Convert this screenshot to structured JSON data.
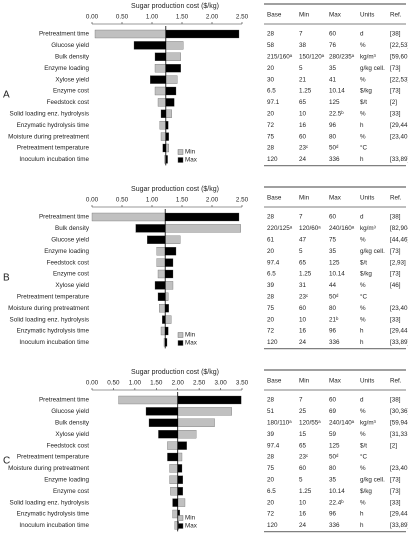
{
  "chart_data": [
    {
      "type": "tornado",
      "label": "A",
      "xlabel": "Sugar production cost ($/kg)",
      "base": 1.23,
      "xlim": [
        0,
        2.5
      ],
      "xticks": [
        {
          "value": 0,
          "label": "0.00"
        },
        {
          "value": 0.5,
          "label": "0.50"
        },
        {
          "value": 1,
          "label": "1.00"
        },
        {
          "value": 1.5,
          "label": "1.50"
        },
        {
          "value": 2,
          "label": "2.00"
        },
        {
          "value": 2.5,
          "label": "2.50"
        }
      ],
      "categories": [
        "Pretreatment time",
        "Glucose yield",
        "Bulk density",
        "Enzyme loading",
        "Xylose yield",
        "Enzyme cost",
        "Feedstock cost",
        "Solid loading enz. hydrolysis",
        "Enzymatic hydrolysis time",
        "Moisture during pretreatment",
        "Pretreatment temperature",
        "Inoculum incubation time"
      ],
      "series": [
        {
          "name": "Min",
          "color": "#c0c0c0",
          "values": [
            0.05,
            1.52,
            1.48,
            1.05,
            1.42,
            1.05,
            1.1,
            1.33,
            1.13,
            1.15,
            1.28,
            1.21
          ]
        },
        {
          "name": "Max",
          "color": "#000000",
          "values": [
            2.45,
            0.7,
            1.05,
            1.48,
            0.97,
            1.4,
            1.37,
            1.15,
            1.27,
            1.28,
            1.18,
            1.26
          ]
        }
      ]
    },
    {
      "type": "tornado",
      "label": "B",
      "xlabel": "Sugar production cost ($/kg)",
      "base": 1.22,
      "xlim": [
        0,
        2.5
      ],
      "xticks": [
        {
          "value": 0,
          "label": "0.00"
        },
        {
          "value": 0.5,
          "label": "0.50"
        },
        {
          "value": 1,
          "label": "1.00"
        },
        {
          "value": 1.5,
          "label": "1.50"
        },
        {
          "value": 2,
          "label": "2.00"
        },
        {
          "value": 2.5,
          "label": "2.50"
        }
      ],
      "categories": [
        "Pretreatment time",
        "Bulk density",
        "Glucose yield",
        "Enzyme loading",
        "Feedstock cost",
        "Enzyme cost",
        "Xylose yield",
        "Pretreatment temperature",
        "Moisture during pretreatment",
        "Solid loading enz. hydrolysis",
        "Enzymatic hydrolysis time",
        "Inoculum incubation time"
      ],
      "series": [
        {
          "name": "Min",
          "color": "#c0c0c0",
          "values": [
            0.0,
            2.48,
            1.47,
            1.08,
            1.08,
            1.1,
            1.35,
            1.27,
            1.12,
            1.32,
            1.15,
            1.2
          ]
        },
        {
          "name": "Max",
          "color": "#000000",
          "values": [
            2.45,
            0.73,
            0.92,
            1.4,
            1.35,
            1.35,
            1.05,
            1.1,
            1.28,
            1.17,
            1.27,
            1.25
          ]
        }
      ]
    },
    {
      "type": "tornado",
      "label": "C",
      "xlabel": "Sugar production cost ($/kg)",
      "base": 2.0,
      "xlim": [
        0,
        3.5
      ],
      "xticks": [
        {
          "value": 0,
          "label": "0.00"
        },
        {
          "value": 0.5,
          "label": "0.50"
        },
        {
          "value": 1,
          "label": "1.00"
        },
        {
          "value": 1.5,
          "label": "1.50"
        },
        {
          "value": 2,
          "label": "2.00"
        },
        {
          "value": 2.5,
          "label": "2.50"
        },
        {
          "value": 3,
          "label": "3.00"
        },
        {
          "value": 3.5,
          "label": "3.50"
        }
      ],
      "categories": [
        "Pretreatment time",
        "Glucose yield",
        "Bulk density",
        "Xylose yield",
        "Feedstock cost",
        "Pretreatment temperature",
        "Moisture during pretreatment",
        "Enzyme loading",
        "Enzyme cost",
        "Solid loading enz. hydrolysis",
        "Enzymatic hydrolysis time",
        "Inoculum incubation time"
      ],
      "series": [
        {
          "name": "Min",
          "color": "#c0c0c0",
          "values": [
            0.62,
            3.26,
            2.86,
            2.43,
            1.76,
            2.1,
            1.81,
            1.81,
            1.83,
            2.17,
            1.88,
            1.93
          ]
        },
        {
          "name": "Max",
          "color": "#000000",
          "values": [
            3.48,
            1.26,
            1.33,
            1.55,
            2.21,
            1.76,
            2.1,
            2.12,
            2.12,
            1.88,
            2.05,
            2.02
          ]
        }
      ]
    }
  ],
  "tables": [
    {
      "columns": [
        "Base",
        "Min",
        "Max",
        "Units",
        "Ref."
      ],
      "rows": [
        [
          "28",
          "7",
          "60",
          "d",
          "[38]"
        ],
        [
          "58",
          "38",
          "76",
          "%",
          "[22,53]"
        ],
        [
          "215/160ᵃ",
          "150/120ᵃ",
          "280/235ᵃ",
          "kg/m³",
          "[59,60,87]"
        ],
        [
          "20",
          "5",
          "35",
          "g/kg cell.",
          "[73]"
        ],
        [
          "30",
          "21",
          "41",
          "%",
          "[22,53]"
        ],
        [
          "6.5",
          "1.25",
          "10.14",
          "$/kg",
          "[73]"
        ],
        [
          "97.1",
          "65",
          "125",
          "$/t",
          "[2]"
        ],
        [
          "20",
          "10",
          "22.5ᵇ",
          "%",
          "[33]"
        ],
        [
          "72",
          "16",
          "96",
          "h",
          "[29,44,45,88]"
        ],
        [
          "75",
          "60",
          "80",
          "%",
          "[23,40,53]"
        ],
        [
          "28",
          "23ᶜ",
          "50ᵈ",
          "°C"
        ],
        [
          "120",
          "24",
          "336",
          "h",
          "[33,89]"
        ]
      ]
    },
    {
      "columns": [
        "Base",
        "Min",
        "Max",
        "Units",
        "Ref."
      ],
      "rows": [
        [
          "28",
          "7",
          "60",
          "d",
          "[38]"
        ],
        [
          "220/125ᵃ",
          "120/60ᵃ",
          "240/160ᵃ",
          "kg/m³",
          "[82,90–92]"
        ],
        [
          "61",
          "47",
          "75",
          "%",
          "[44,46]"
        ],
        [
          "20",
          "5",
          "35",
          "g/kg cell.",
          "[73]"
        ],
        [
          "97.4",
          "65",
          "125",
          "$/t",
          "[2,93]"
        ],
        [
          "6.5",
          "1.25",
          "10.14",
          "$/kg",
          "[73]"
        ],
        [
          "39",
          "31",
          "44",
          "%",
          "[46]"
        ],
        [
          "28",
          "23ᶜ",
          "50ᵈ",
          "°C"
        ],
        [
          "75",
          "60",
          "80",
          "%",
          "[23,40,53]"
        ],
        [
          "20",
          "10",
          "21ᵇ",
          "%",
          "[33]"
        ],
        [
          "72",
          "16",
          "96",
          "h",
          "[29,44,45,88]"
        ],
        [
          "120",
          "24",
          "336",
          "h",
          "[33,89]"
        ]
      ]
    },
    {
      "columns": [
        "Base",
        "Min",
        "Max",
        "Units",
        "Ref."
      ],
      "rows": [
        [
          "28",
          "7",
          "60",
          "d",
          "[38]"
        ],
        [
          "51",
          "25",
          "69",
          "%",
          "[30,36]"
        ],
        [
          "180/110ᵃ",
          "120/55ᵃ",
          "240/140ᵃ",
          "kg/m³",
          "[59,94–96]"
        ],
        [
          "39",
          "15",
          "59",
          "%",
          "[31,33,38]"
        ],
        [
          "97.4",
          "65",
          "125",
          "$/t",
          "[2]"
        ],
        [
          "28",
          "23ᶜ",
          "50ᵈ",
          "°C"
        ],
        [
          "75",
          "60",
          "80",
          "%",
          "[23,40,53]"
        ],
        [
          "20",
          "5",
          "35",
          "g/kg cell.",
          "[73]"
        ],
        [
          "6.5",
          "1.25",
          "10.14",
          "$/kg",
          "[73]"
        ],
        [
          "20",
          "10",
          "22.4ᵇ",
          "%",
          "[33]"
        ],
        [
          "72",
          "16",
          "96",
          "h",
          "[29,44,45,88]"
        ],
        [
          "120",
          "24",
          "336",
          "h",
          "[33,89]"
        ]
      ]
    }
  ]
}
